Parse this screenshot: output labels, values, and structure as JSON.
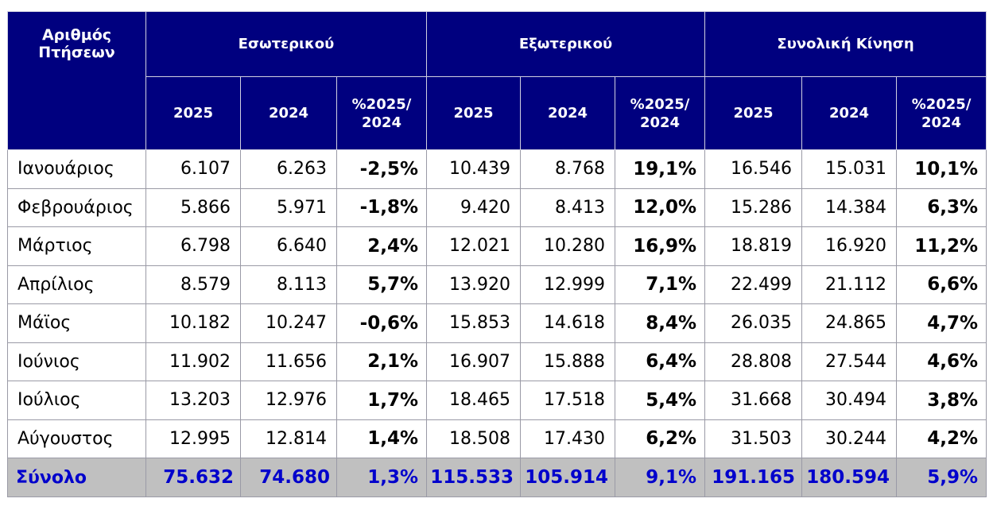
{
  "header": {
    "corner_label": "Αριθμός Πτήσεων",
    "groups": [
      "Εσωτερικού",
      "Εξωτερικού",
      "Συνολική Κίνηση"
    ],
    "sub_columns": [
      "2025",
      "2024",
      "%2025/ 2024"
    ]
  },
  "rows": [
    {
      "month": "Ιανουάριος",
      "cells": [
        "6.107",
        "6.263",
        "-2,5%",
        "10.439",
        "8.768",
        "19,1%",
        "16.546",
        "15.031",
        "10,1%"
      ]
    },
    {
      "month": "Φεβρουάριος",
      "cells": [
        "5.866",
        "5.971",
        "-1,8%",
        "9.420",
        "8.413",
        "12,0%",
        "15.286",
        "14.384",
        "6,3%"
      ]
    },
    {
      "month": "Μάρτιος",
      "cells": [
        "6.798",
        "6.640",
        "2,4%",
        "12.021",
        "10.280",
        "16,9%",
        "18.819",
        "16.920",
        "11,2%"
      ]
    },
    {
      "month": "Απρίλιος",
      "cells": [
        "8.579",
        "8.113",
        "5,7%",
        "13.920",
        "12.999",
        "7,1%",
        "22.499",
        "21.112",
        "6,6%"
      ]
    },
    {
      "month": "Μάϊος",
      "cells": [
        "10.182",
        "10.247",
        "-0,6%",
        "15.853",
        "14.618",
        "8,4%",
        "26.035",
        "24.865",
        "4,7%"
      ]
    },
    {
      "month": "Ιούνιος",
      "cells": [
        "11.902",
        "11.656",
        "2,1%",
        "16.907",
        "15.888",
        "6,4%",
        "28.808",
        "27.544",
        "4,6%"
      ]
    },
    {
      "month": "Ιούλιος",
      "cells": [
        "13.203",
        "12.976",
        "1,7%",
        "18.465",
        "17.518",
        "5,4%",
        "31.668",
        "30.494",
        "3,8%"
      ]
    },
    {
      "month": "Αύγουστος",
      "cells": [
        "12.995",
        "12.814",
        "1,4%",
        "18.508",
        "17.430",
        "6,2%",
        "31.503",
        "30.244",
        "4,2%"
      ]
    }
  ],
  "total": {
    "label": "Σύνολο",
    "cells": [
      "75.632",
      "74.680",
      "1,3%",
      "115.533",
      "105.914",
      "9,1%",
      "191.165",
      "180.594",
      "5,9%"
    ]
  },
  "colors": {
    "header_bg": "#00007f",
    "header_text": "#ffffff",
    "total_bg": "#c0c0c0",
    "total_text": "#0000cc"
  }
}
